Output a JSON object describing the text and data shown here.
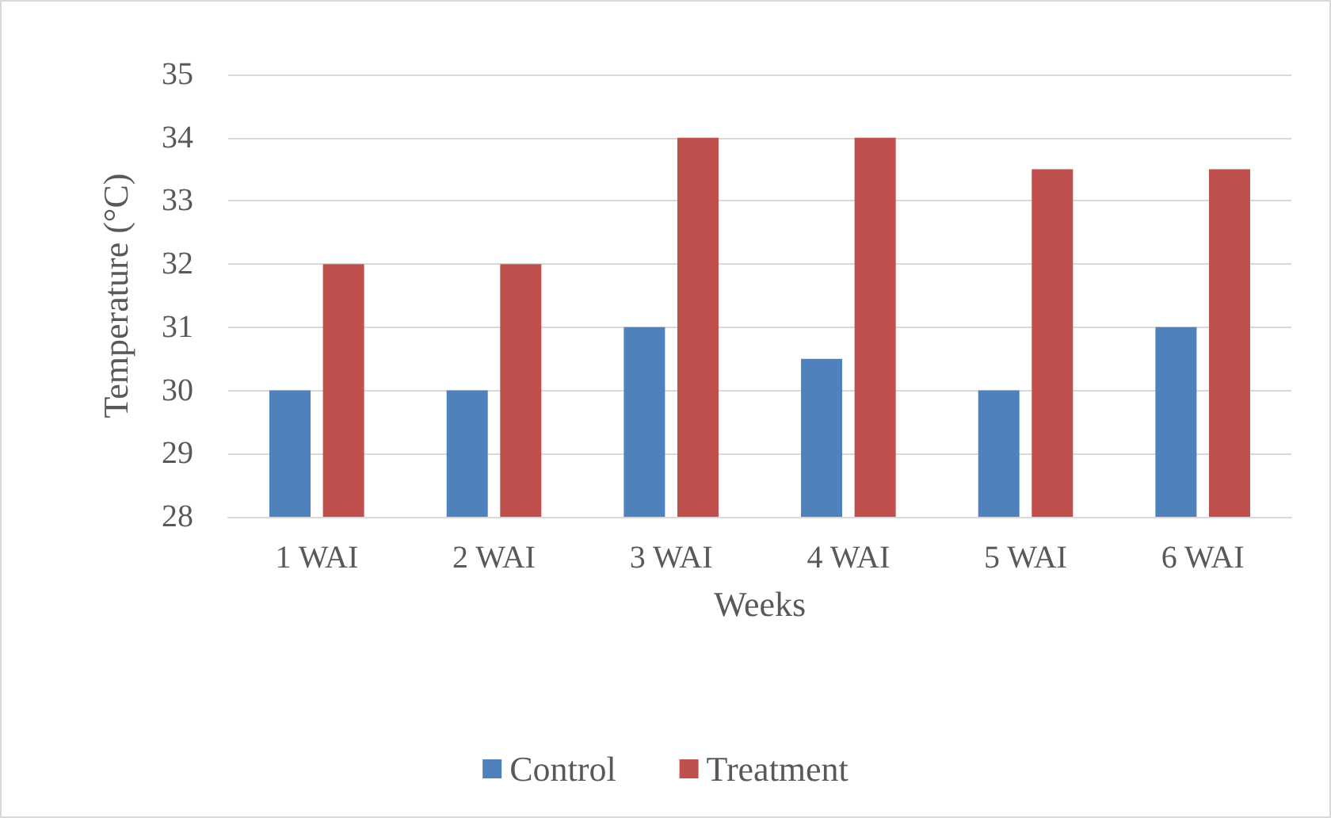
{
  "chart_data": {
    "type": "bar",
    "xlabel": "Weeks",
    "ylabel": "Temperature (°C)",
    "categories": [
      "1 WAI",
      "2 WAI",
      "3 WAI",
      "4 WAI",
      "5 WAI",
      "6 WAI"
    ],
    "series": [
      {
        "name": "Control",
        "color": "#4f81bd",
        "values": [
          30,
          30,
          31,
          30.5,
          30,
          31
        ]
      },
      {
        "name": "Treatment",
        "color": "#c0504d",
        "values": [
          32,
          32,
          34,
          34,
          33.5,
          33.5
        ]
      }
    ],
    "ylim": [
      28,
      35
    ],
    "yticks": [
      28,
      29,
      30,
      31,
      32,
      33,
      34,
      35
    ],
    "grid": "y",
    "legend": "bottom"
  }
}
